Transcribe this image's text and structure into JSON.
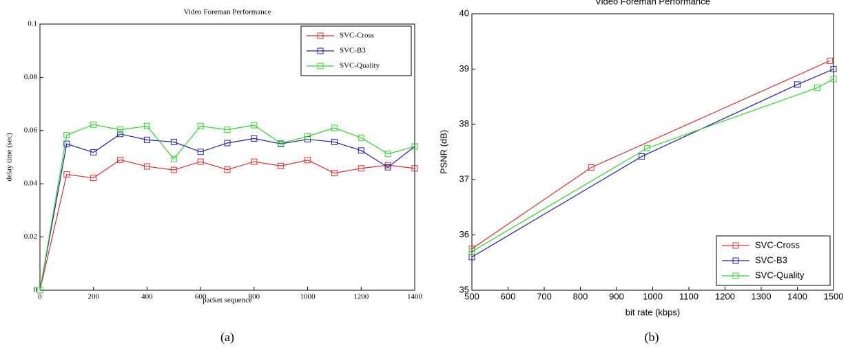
{
  "chart_data": [
    {
      "type": "line",
      "title": "Video Foreman Performance",
      "x_label": "packet sequence",
      "y_label": "delay time (sec)",
      "caption": "(a)",
      "x": [
        0,
        100,
        200,
        300,
        400,
        500,
        600,
        700,
        800,
        900,
        1000,
        1100,
        1200,
        1300,
        1400
      ],
      "xlim": [
        0,
        1400
      ],
      "xticks": [
        0,
        200,
        400,
        600,
        800,
        1000,
        1200,
        1400
      ],
      "ylim": [
        0,
        0.1
      ],
      "yticks": [
        0,
        0.02,
        0.04,
        0.06,
        0.08,
        0.1
      ],
      "legend": "upper right",
      "series": [
        {
          "name": "SVC-Cross",
          "color": "#d03030",
          "values": [
            0,
            0.0435,
            0.0422,
            0.049,
            0.0465,
            0.0452,
            0.0483,
            0.0453,
            0.0483,
            0.0467,
            0.0489,
            0.044,
            0.0458,
            0.047,
            0.0458
          ]
        },
        {
          "name": "SVC-B3",
          "color": "#2020a0",
          "values": [
            0,
            0.055,
            0.0518,
            0.0587,
            0.0565,
            0.0557,
            0.052,
            0.0553,
            0.057,
            0.055,
            0.0567,
            0.0557,
            0.0525,
            0.0462,
            0.054
          ]
        },
        {
          "name": "SVC-Quality",
          "color": "#30d030",
          "values": [
            0,
            0.0583,
            0.0622,
            0.0603,
            0.0617,
            0.0493,
            0.0617,
            0.0603,
            0.062,
            0.0552,
            0.0578,
            0.061,
            0.0573,
            0.0512,
            0.054
          ]
        }
      ]
    },
    {
      "type": "line",
      "title": "Video Foreman Performance",
      "x_label": "bit rate (kbps)",
      "y_label": "PSNR (dB)",
      "caption": "(b)",
      "xlim": [
        500,
        1500
      ],
      "xticks": [
        500,
        600,
        700,
        800,
        900,
        1000,
        1100,
        1200,
        1300,
        1400,
        1500
      ],
      "ylim": [
        35,
        40
      ],
      "yticks": [
        35,
        36,
        37,
        38,
        39,
        40
      ],
      "legend": "lower right",
      "series": [
        {
          "name": "SVC-Cross",
          "color": "#d03030",
          "x": [
            500,
            830,
            1490
          ],
          "values": [
            35.75,
            37.22,
            39.15
          ]
        },
        {
          "name": "SVC-B3",
          "color": "#2020a0",
          "x": [
            500,
            970,
            1400,
            1500
          ],
          "values": [
            35.6,
            37.42,
            38.72,
            39.0
          ]
        },
        {
          "name": "SVC-Quality",
          "color": "#30d030",
          "x": [
            500,
            985,
            1455,
            1500
          ],
          "values": [
            35.7,
            37.57,
            38.66,
            38.82
          ]
        }
      ]
    }
  ]
}
